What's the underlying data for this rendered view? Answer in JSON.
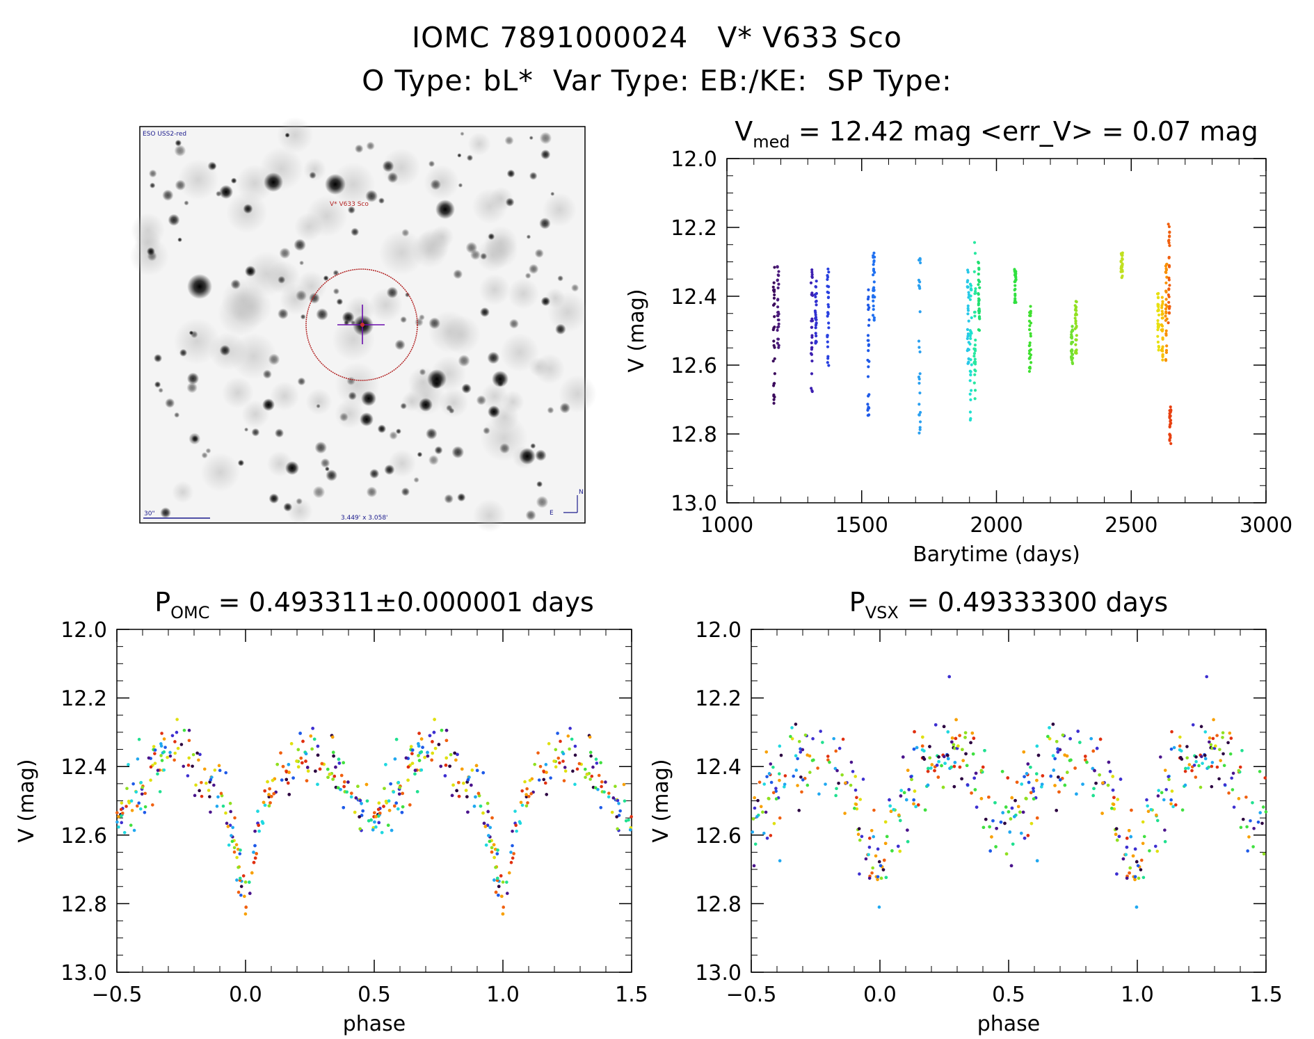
{
  "header": {
    "line1": "IOMC 7891000024   V* V633 Sco",
    "line2": "O Type: bL*  Var Type: EB:/KE:  SP Type:"
  },
  "finder": {
    "survey": "ESO USS2-red",
    "target_label": "V* V633 Sco",
    "scale_label": "30\"",
    "fov_label": "3.449' x 3.058'",
    "north": "N",
    "east": "E",
    "colors": {
      "circle": "#b22222",
      "cross": "#6a0dad",
      "scale": "#1a1a8c"
    }
  },
  "chart_data": [
    {
      "id": "lightcurve",
      "type": "scatter",
      "title_main": "V",
      "title_sub": "med",
      "title_rest": " = 12.42 mag <err_V> = 0.07 mag",
      "xlabel": "Barytime (days)",
      "ylabel": "V (mag)",
      "xlim": [
        1000,
        3000
      ],
      "ylim": [
        13.0,
        12.0
      ],
      "xticks": [
        "1000",
        "1500",
        "2000",
        "2500",
        "3000"
      ],
      "yticks": [
        "12.0",
        "12.2",
        "12.4",
        "12.6",
        "12.8",
        "13.0"
      ],
      "clusters": [
        {
          "x": 1175,
          "ymin": 12.3,
          "ymax": 12.72,
          "color": "#3b0a5c"
        },
        {
          "x": 1190,
          "ymin": 12.31,
          "ymax": 12.55,
          "color": "#4b1a7c"
        },
        {
          "x": 1315,
          "ymin": 12.32,
          "ymax": 12.69,
          "color": "#3c1fb0"
        },
        {
          "x": 1330,
          "ymin": 12.35,
          "ymax": 12.55,
          "color": "#3030d0"
        },
        {
          "x": 1375,
          "ymin": 12.32,
          "ymax": 12.61,
          "color": "#2840e0"
        },
        {
          "x": 1525,
          "ymin": 12.37,
          "ymax": 12.76,
          "color": "#1e5ae8"
        },
        {
          "x": 1545,
          "ymin": 12.27,
          "ymax": 12.48,
          "color": "#2070f0"
        },
        {
          "x": 1715,
          "ymin": 12.27,
          "ymax": 12.84,
          "color": "#2aa0f0"
        },
        {
          "x": 1895,
          "ymin": 12.32,
          "ymax": 12.6,
          "color": "#28c8e8"
        },
        {
          "x": 1905,
          "ymin": 12.33,
          "ymax": 12.76,
          "color": "#20e0d0"
        },
        {
          "x": 1920,
          "ymin": 12.21,
          "ymax": 12.7,
          "color": "#28e8a0"
        },
        {
          "x": 1935,
          "ymin": 12.3,
          "ymax": 12.5,
          "color": "#20e070"
        },
        {
          "x": 2070,
          "ymin": 12.31,
          "ymax": 12.42,
          "color": "#30e040"
        },
        {
          "x": 2125,
          "ymin": 12.42,
          "ymax": 12.63,
          "color": "#40e030"
        },
        {
          "x": 2280,
          "ymin": 12.48,
          "ymax": 12.6,
          "color": "#70e030"
        },
        {
          "x": 2295,
          "ymin": 12.41,
          "ymax": 12.57,
          "color": "#90e020"
        },
        {
          "x": 2465,
          "ymin": 12.27,
          "ymax": 12.35,
          "color": "#c0e020"
        },
        {
          "x": 2600,
          "ymin": 12.39,
          "ymax": 12.56,
          "color": "#e8e010"
        },
        {
          "x": 2615,
          "ymin": 12.4,
          "ymax": 12.59,
          "color": "#f8c000"
        },
        {
          "x": 2630,
          "ymin": 12.3,
          "ymax": 12.59,
          "color": "#f89000"
        },
        {
          "x": 2640,
          "ymin": 12.19,
          "ymax": 12.48,
          "color": "#f06010"
        },
        {
          "x": 2645,
          "ymin": 12.72,
          "ymax": 12.83,
          "color": "#e84010"
        }
      ]
    },
    {
      "id": "phase_omc",
      "type": "scatter",
      "title_main": "P",
      "title_sub": "OMC",
      "title_rest": " = 0.493311±0.000001 days",
      "xlabel": "phase",
      "ylabel": "V (mag)",
      "xlim": [
        -0.5,
        1.5
      ],
      "ylim": [
        13.0,
        12.0
      ],
      "xticks": [
        "−0.5",
        "0.0",
        "0.5",
        "1.0",
        "1.5"
      ],
      "yticks": [
        "12.0",
        "12.2",
        "12.4",
        "12.6",
        "12.8",
        "13.0"
      ],
      "profile": {
        "phase": [
          0.0,
          0.02,
          0.05,
          0.1,
          0.15,
          0.2,
          0.25,
          0.3,
          0.35,
          0.4,
          0.45,
          0.5,
          0.52,
          0.55,
          0.6,
          0.65,
          0.7,
          0.75,
          0.8,
          0.85,
          0.9,
          0.95,
          1.0
        ],
        "mag": [
          12.78,
          12.72,
          12.6,
          12.48,
          12.42,
          12.38,
          12.36,
          12.36,
          12.4,
          12.46,
          12.52,
          12.55,
          12.54,
          12.5,
          12.44,
          12.39,
          12.36,
          12.35,
          12.38,
          12.42,
          12.48,
          12.6,
          12.78
        ]
      },
      "scatter": 0.04,
      "points_per_cycle": 260
    },
    {
      "id": "phase_vsx",
      "type": "scatter",
      "title_main": "P",
      "title_sub": "VSX",
      "title_rest": " = 0.49333300 days",
      "xlabel": "phase",
      "ylabel": "V (mag)",
      "xlim": [
        -0.5,
        1.5
      ],
      "ylim": [
        13.0,
        12.0
      ],
      "xticks": [
        "−0.5",
        "0.0",
        "0.5",
        "1.0",
        "1.5"
      ],
      "yticks": [
        "12.0",
        "12.2",
        "12.4",
        "12.6",
        "12.8",
        "13.0"
      ],
      "profile": {
        "phase": [
          0.0,
          0.02,
          0.05,
          0.1,
          0.15,
          0.2,
          0.25,
          0.3,
          0.35,
          0.4,
          0.45,
          0.5,
          0.52,
          0.55,
          0.6,
          0.65,
          0.7,
          0.75,
          0.8,
          0.85,
          0.9,
          0.95,
          1.0
        ],
        "mag": [
          12.7,
          12.66,
          12.58,
          12.48,
          12.42,
          12.38,
          12.36,
          12.37,
          12.41,
          12.46,
          12.52,
          12.55,
          12.54,
          12.5,
          12.44,
          12.39,
          12.36,
          12.36,
          12.39,
          12.44,
          12.5,
          12.6,
          12.7
        ]
      },
      "scatter": 0.07,
      "points_per_cycle": 260
    }
  ]
}
